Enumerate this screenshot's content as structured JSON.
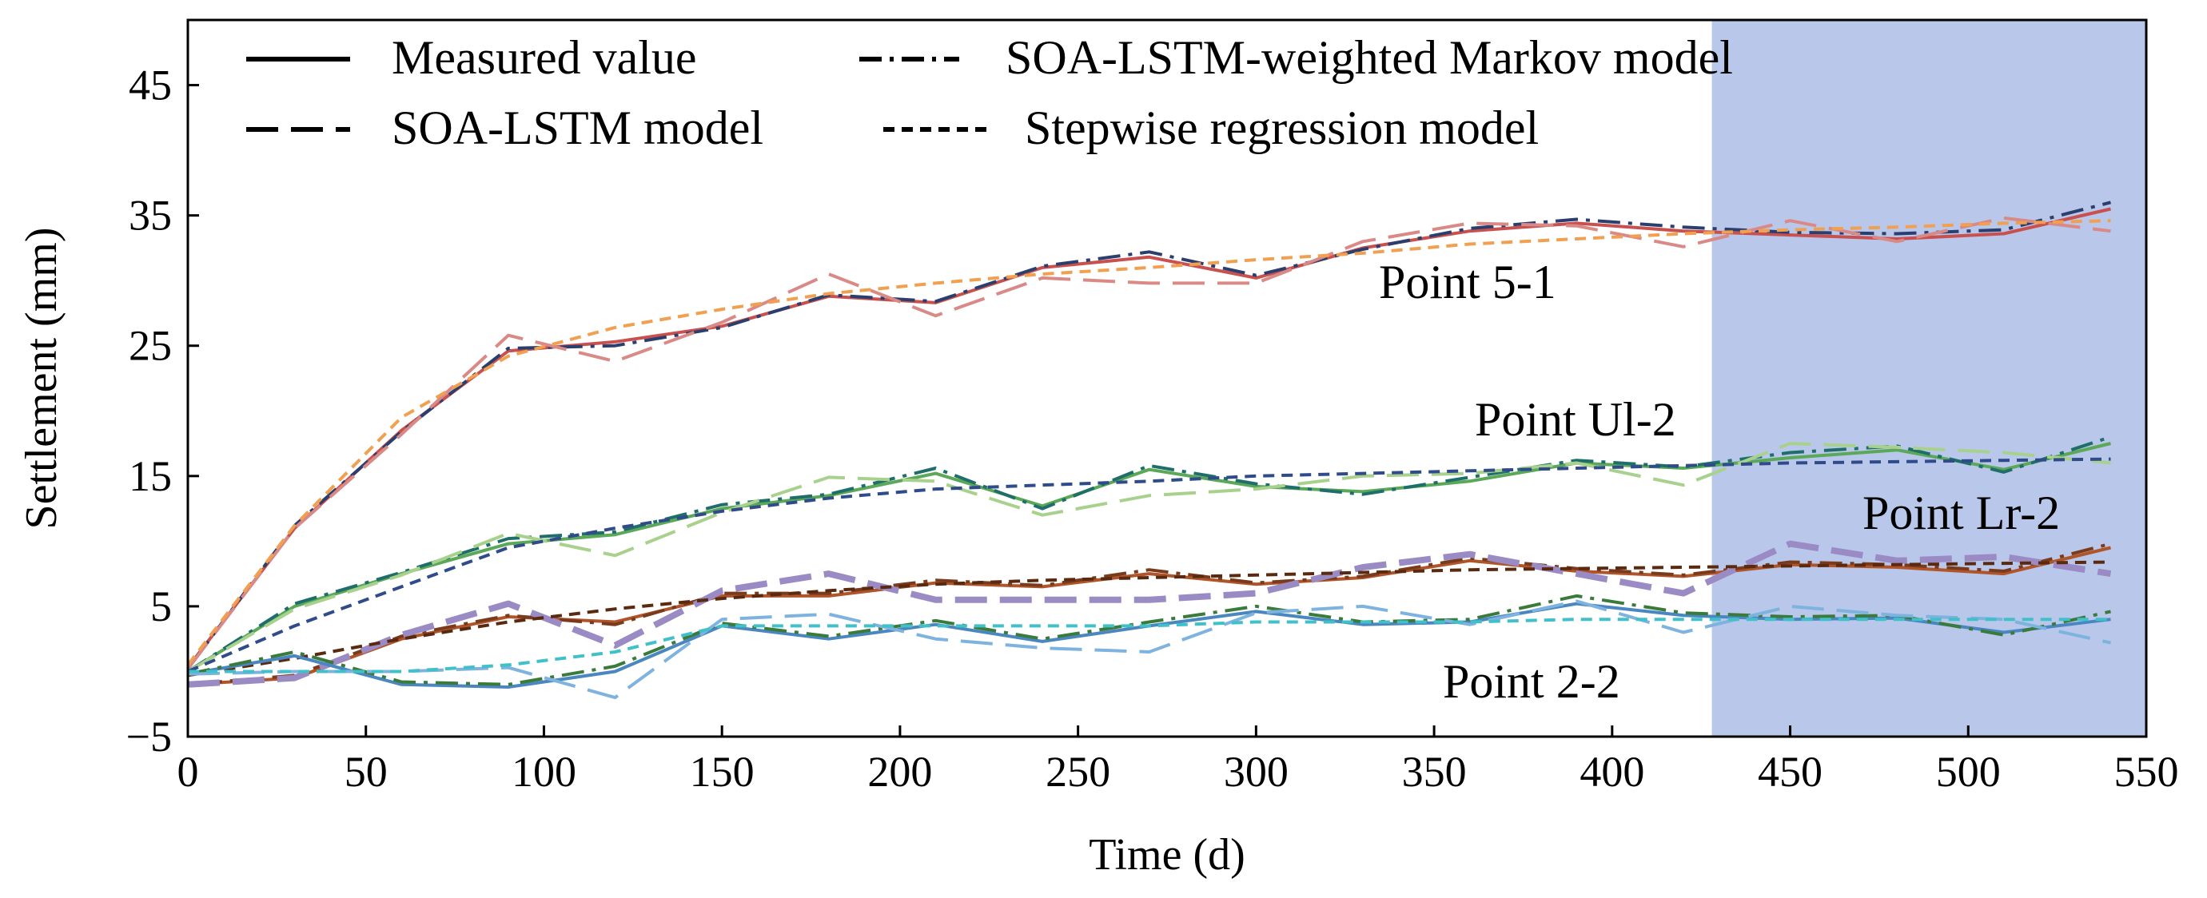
{
  "chart_data": {
    "type": "line",
    "title": "",
    "xlabel": "Time (d)",
    "ylabel": "Settlement (mm)",
    "xlim": [
      0,
      550
    ],
    "ylim": [
      -5,
      50
    ],
    "xticks": [
      0,
      50,
      100,
      150,
      200,
      250,
      300,
      350,
      400,
      450,
      500,
      550
    ],
    "yticks": [
      -5,
      5,
      15,
      25,
      35,
      45
    ],
    "xtick_labels": [
      "0",
      "50",
      "100",
      "150",
      "200",
      "250",
      "300",
      "350",
      "400",
      "450",
      "500",
      "550"
    ],
    "ytick_labels": [
      "−5",
      "5",
      "15",
      "25",
      "35",
      "45"
    ],
    "prediction_region": [
      428,
      550
    ],
    "prediction_region_color": "#b9c8ea",
    "x": [
      0,
      30,
      60,
      90,
      120,
      150,
      180,
      210,
      240,
      270,
      300,
      330,
      360,
      390,
      420,
      450,
      480,
      510,
      540
    ],
    "legend": [
      {
        "label": "Measured value",
        "style": "solid"
      },
      {
        "label": "SOA-LSTM-weighted Markov model",
        "style": "dashdot"
      },
      {
        "label": "SOA-LSTM model",
        "style": "longdash"
      },
      {
        "label": "Stepwise regression model",
        "style": "shortdash"
      }
    ],
    "groups": [
      {
        "name": "Point 5-1",
        "series": [
          {
            "model": "Measured value",
            "style": "solid",
            "color": "#c8514f",
            "values": [
              0.3,
              11,
              18.5,
              24.6,
              25.3,
              26.5,
              28.8,
              28.3,
              31,
              31.8,
              30.2,
              32.5,
              33.8,
              34.4,
              33.8,
              33.5,
              33.2,
              33.6,
              35.5
            ]
          },
          {
            "model": "SOA-LSTM-weighted Markov model",
            "style": "dashdot",
            "color": "#2b3f6e",
            "values": [
              0.2,
              11.2,
              18.4,
              24.8,
              25,
              26.4,
              28.9,
              28.4,
              31.1,
              32.2,
              30.4,
              32.4,
              34,
              34.7,
              34.1,
              33.7,
              33.6,
              33.9,
              36
            ]
          },
          {
            "model": "SOA-LSTM model",
            "style": "longdash",
            "color": "#d98a86",
            "values": [
              0.2,
              11,
              18.2,
              25.8,
              23.8,
              26.8,
              30.5,
              27.3,
              30.2,
              29.8,
              29.8,
              33,
              34.4,
              34.2,
              32.6,
              34.6,
              33,
              34.8,
              33.8
            ]
          },
          {
            "model": "Stepwise regression model",
            "style": "shortdash",
            "color": "#f0a050",
            "values": [
              0.5,
              11.2,
              19.5,
              24.2,
              26.4,
              27.8,
              29,
              29.8,
              30.5,
              31,
              31.6,
              32.1,
              32.8,
              33.2,
              33.6,
              33.9,
              34.1,
              34.4,
              34.6
            ]
          }
        ]
      },
      {
        "name": "Point Ul-2",
        "series": [
          {
            "model": "Measured value",
            "style": "solid",
            "color": "#5aa858",
            "values": [
              0,
              5,
              7.5,
              9.8,
              10.5,
              12.5,
              13.5,
              15.2,
              12.7,
              15.5,
              14.2,
              13.8,
              14.6,
              16,
              15.6,
              16.4,
              17,
              15.5,
              17.5
            ]
          },
          {
            "model": "SOA-LSTM-weighted Markov model",
            "style": "dashdot",
            "color": "#1f6e6a",
            "values": [
              0,
              5.2,
              7.6,
              10.2,
              10.7,
              12.8,
              13.6,
              15.6,
              12.5,
              15.8,
              14.4,
              13.6,
              14.9,
              16.2,
              15.7,
              16.8,
              17.3,
              15.3,
              18
            ]
          },
          {
            "model": "SOA-LSTM model",
            "style": "longdash",
            "color": "#a9d18e",
            "values": [
              0,
              4.8,
              7.4,
              10.6,
              8.9,
              12.2,
              14.9,
              14.6,
              12,
              13.5,
              14,
              15,
              15.2,
              16,
              14.3,
              17.5,
              17.2,
              16.8,
              16
            ]
          },
          {
            "model": "Stepwise regression model",
            "style": "shortdash",
            "color": "#2f4b8a",
            "values": [
              0,
              3.5,
              6.5,
              9.5,
              11,
              12.3,
              13.3,
              14,
              14.3,
              14.6,
              15,
              15.2,
              15.4,
              15.6,
              15.8,
              16,
              16.1,
              16.2,
              16.3
            ]
          }
        ]
      },
      {
        "name": "Point Lr-2",
        "series": [
          {
            "model": "Measured value",
            "style": "solid",
            "color": "#b0552a",
            "values": [
              -1,
              -0.5,
              2.5,
              4.2,
              3.8,
              5.8,
              5.8,
              6.8,
              6.5,
              7.5,
              6.7,
              7.2,
              8.5,
              7.7,
              7.3,
              8.2,
              8,
              7.5,
              9.5
            ]
          },
          {
            "model": "SOA-LSTM-weighted Markov model",
            "style": "dashdot",
            "color": "#7a3b1d",
            "values": [
              -1,
              -0.3,
              2.7,
              4.3,
              3.6,
              6,
              6,
              7,
              6.6,
              7.8,
              6.8,
              7.3,
              8.7,
              7.9,
              7.4,
              8.4,
              8.2,
              7.7,
              9.8
            ]
          },
          {
            "model": "SOA-LSTM model",
            "style": "longdash",
            "color": "#9b8bc4",
            "values": [
              -1,
              -0.5,
              2.8,
              5.2,
              2,
              6.2,
              7.5,
              5.5,
              5.5,
              5.5,
              6,
              8,
              9,
              7.5,
              6,
              9.8,
              8.5,
              8.8,
              7.5
            ]
          },
          {
            "model": "Stepwise regression model",
            "style": "shortdash",
            "color": "#5a2a10",
            "values": [
              -0.3,
              1,
              2.5,
              3.8,
              4.8,
              5.6,
              6.2,
              6.7,
              7,
              7.2,
              7.4,
              7.6,
              7.8,
              7.9,
              8,
              8.1,
              8.2,
              8.3,
              8.4
            ]
          }
        ]
      },
      {
        "name": "Point 2-2",
        "series": [
          {
            "model": "Measured value",
            "style": "solid",
            "color": "#4a86c0",
            "values": [
              -0.2,
              1.2,
              -1,
              -1.2,
              0,
              3.5,
              2.5,
              3.6,
              2.3,
              3.5,
              4.6,
              3.6,
              3.8,
              5.2,
              4.3,
              4,
              4.1,
              3,
              4
            ]
          },
          {
            "model": "SOA-LSTM-weighted Markov model",
            "style": "dashdot",
            "color": "#3a7a3a",
            "values": [
              -0.2,
              1.5,
              -0.8,
              -1,
              0.4,
              3.7,
              2.7,
              3.9,
              2.5,
              3.8,
              5,
              3.8,
              4,
              5.8,
              4.5,
              4.2,
              4.3,
              2.8,
              4.6
            ]
          },
          {
            "model": "SOA-LSTM model",
            "style": "longdash",
            "color": "#7eb3e0",
            "values": [
              -0.2,
              0,
              0,
              0.3,
              -2,
              4,
              4.4,
              2.5,
              1.8,
              1.5,
              4.5,
              5,
              3.6,
              5.4,
              3,
              5,
              4.3,
              4,
              2.2
            ]
          },
          {
            "model": "Stepwise regression model",
            "style": "shortdash",
            "color": "#40c0c8",
            "values": [
              0,
              0,
              0,
              0.5,
              1.5,
              3.5,
              3.5,
              3.5,
              3.5,
              3.5,
              3.8,
              3.8,
              3.8,
              4,
              4,
              4,
              4,
              4,
              4
            ]
          }
        ]
      }
    ],
    "point_label_positions": {
      "Point 5-1": [
        0,
        0
      ],
      "Point Ul-2": [
        0,
        0
      ],
      "Point Lr-2": [
        0,
        0
      ],
      "Point 2-2": [
        0,
        0
      ]
    }
  }
}
